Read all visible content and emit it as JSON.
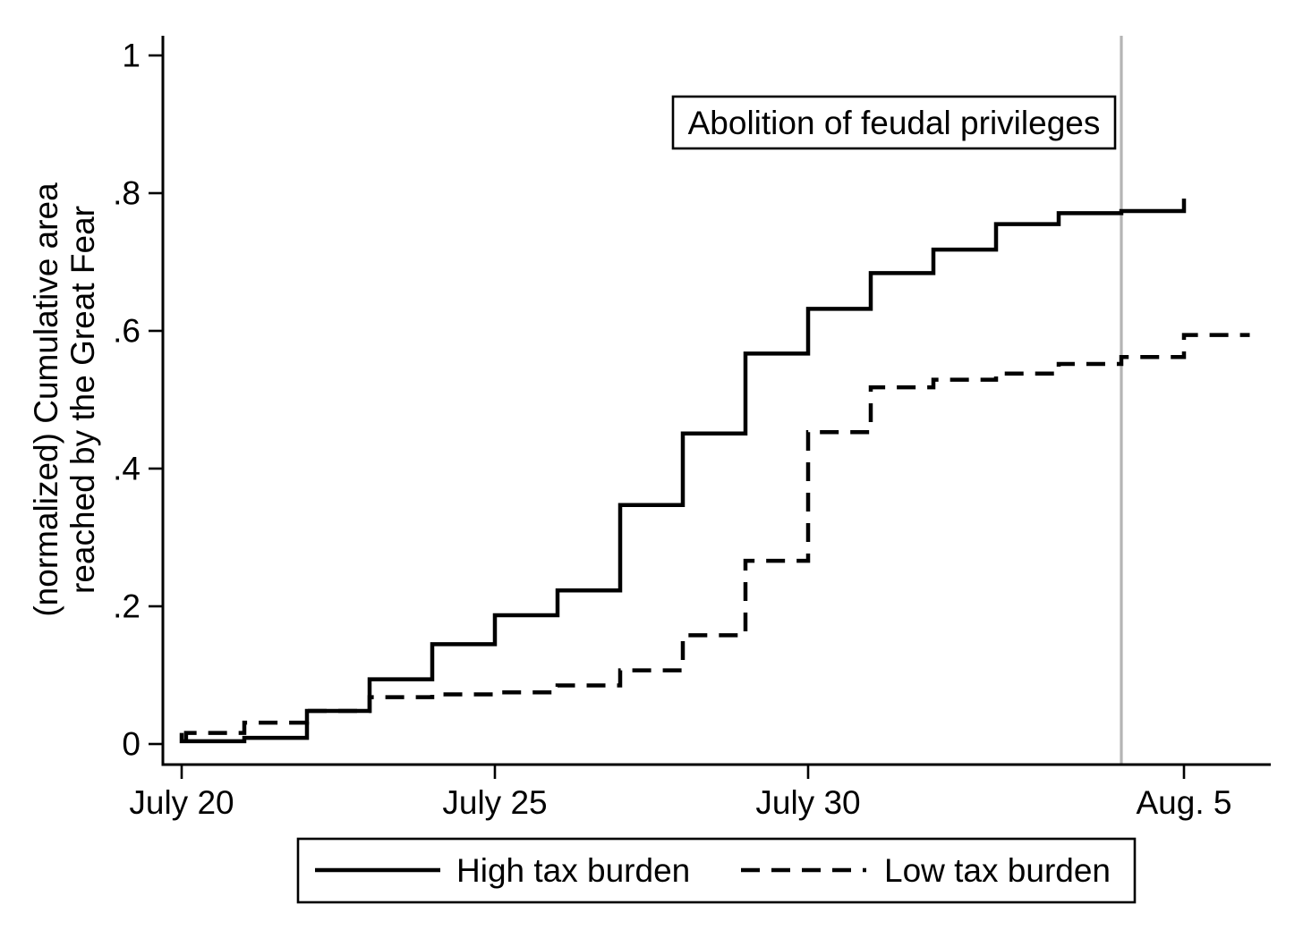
{
  "chart_data": {
    "type": "line",
    "subtype": "step",
    "title": "",
    "ylabel_lines": [
      "(normalized) Cumulative area",
      "reached by the Great Fear"
    ],
    "xlabel": "",
    "x_unit": "date (1789)",
    "x_ticks": [
      {
        "day": 0,
        "label": "July 20"
      },
      {
        "day": 5,
        "label": "July 25"
      },
      {
        "day": 10,
        "label": "July 30"
      },
      {
        "day": 16,
        "label": "Aug. 5"
      }
    ],
    "y_ticks": [
      {
        "value": 1,
        "label": "1"
      },
      {
        "value": 0.8,
        "label": ".8"
      },
      {
        "value": 0.6,
        "label": ".6"
      },
      {
        "value": 0.4,
        "label": ".4"
      },
      {
        "value": 0.2,
        "label": ".2"
      },
      {
        "value": 0,
        "label": "0"
      }
    ],
    "ylim": [
      0,
      1.03
    ],
    "xlim_days": [
      -0.3,
      17.4
    ],
    "grid": "off",
    "event_line": {
      "day": 15,
      "annotation": "Abolition of feudal privileges",
      "color": "#b5b5b5"
    },
    "series": [
      {
        "name": "High tax burden",
        "line_style": "solid",
        "color": "#000000",
        "start_cap_value": 0.016,
        "points": [
          [
            0,
            0.004
          ],
          [
            1,
            0.009
          ],
          [
            2,
            0.048
          ],
          [
            3,
            0.094
          ],
          [
            4,
            0.145
          ],
          [
            5,
            0.187
          ],
          [
            6,
            0.223
          ],
          [
            7,
            0.347
          ],
          [
            8,
            0.451
          ],
          [
            9,
            0.567
          ],
          [
            10,
            0.632
          ],
          [
            11,
            0.684
          ],
          [
            12,
            0.718
          ],
          [
            13,
            0.755
          ],
          [
            14,
            0.771
          ],
          [
            15,
            0.774
          ],
          [
            16,
            0.792
          ]
        ]
      },
      {
        "name": "Low tax burden",
        "line_style": "dashed",
        "color": "#000000",
        "start_cap_value": 0.004,
        "points": [
          [
            0.07,
            0.016
          ],
          [
            1,
            0.031
          ],
          [
            2,
            0.048
          ],
          [
            3,
            0.068
          ],
          [
            4,
            0.072
          ],
          [
            5,
            0.075
          ],
          [
            6,
            0.085
          ],
          [
            7,
            0.107
          ],
          [
            8,
            0.158
          ],
          [
            9,
            0.266
          ],
          [
            10,
            0.453
          ],
          [
            11,
            0.518
          ],
          [
            12,
            0.529
          ],
          [
            13,
            0.538
          ],
          [
            14,
            0.552
          ],
          [
            15,
            0.562
          ],
          [
            16,
            0.594
          ],
          [
            17.05,
            0.594
          ]
        ]
      }
    ],
    "legend": {
      "position": "bottom-center"
    }
  }
}
